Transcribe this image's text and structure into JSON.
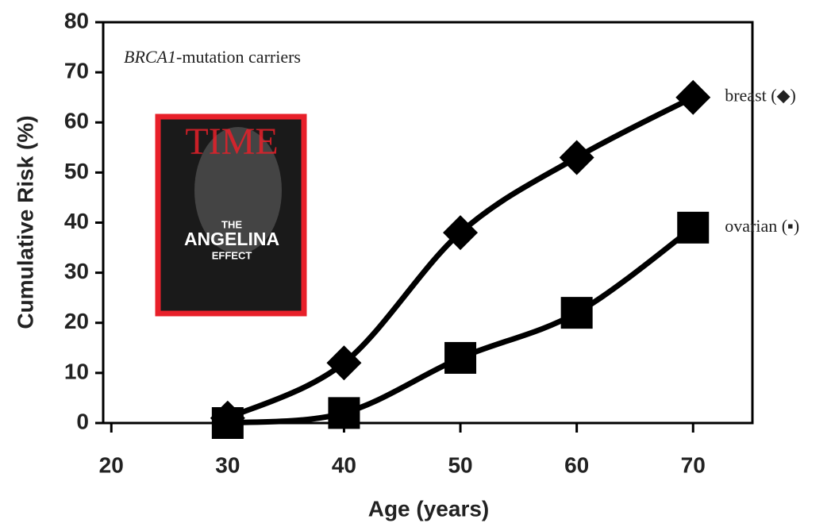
{
  "chart_data": {
    "type": "line",
    "annotation": {
      "gene": "BRCA1",
      "text": "-mutation carriers"
    },
    "x_label": "Age (years)",
    "y_label": "Cumulative Risk (%)",
    "x": [
      30,
      40,
      50,
      60,
      70
    ],
    "series": [
      {
        "name": "breast (◆)",
        "color": "#000000",
        "marker": "diamond",
        "values": [
          1,
          12,
          38,
          53,
          65
        ]
      },
      {
        "name": "ovarian (▪)",
        "color": "#000000",
        "marker": "square",
        "values": [
          0,
          2,
          13,
          22,
          39
        ]
      }
    ],
    "xlim": [
      19.3,
      75.1
    ],
    "xticks": [
      20,
      30,
      40,
      50,
      60,
      70
    ],
    "ylim": [
      0,
      80
    ],
    "yticks": [
      0,
      10,
      20,
      30,
      40,
      50,
      60,
      70,
      80
    ],
    "inset": {
      "masthead": "TIME",
      "headline_top": "THE",
      "headline": "ANGELINA",
      "headline_bottom": "EFFECT"
    }
  }
}
